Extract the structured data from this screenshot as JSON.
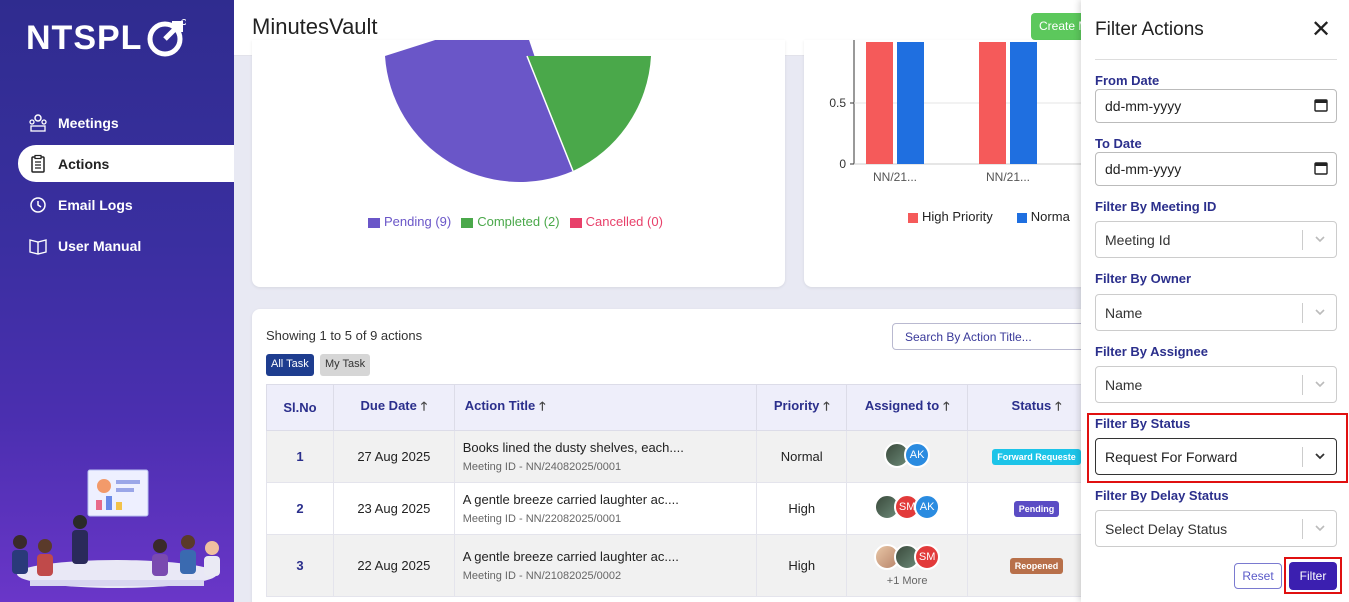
{
  "brand": {
    "logo_text": "NTSPL"
  },
  "sidebar": {
    "items": [
      {
        "label": "Meetings",
        "icon": "meetings-icon",
        "active": false
      },
      {
        "label": "Actions",
        "icon": "clipboard-icon",
        "active": true
      },
      {
        "label": "Email Logs",
        "icon": "history-icon",
        "active": false
      },
      {
        "label": "User Manual",
        "icon": "book-icon",
        "active": false
      }
    ]
  },
  "header": {
    "title": "MinutesVault",
    "create_label": "Create M"
  },
  "pie": {
    "legend": [
      {
        "label": "Pending (9)",
        "color": "#6a56c8"
      },
      {
        "label": "Completed (2)",
        "color": "#4aa84a"
      },
      {
        "label": "Cancelled (0)",
        "color": "#e8406a"
      }
    ]
  },
  "chart_data": {
    "type": "bar",
    "categories": [
      "NN/21...",
      "NN/21..."
    ],
    "series": [
      {
        "name": "High Priority",
        "color": "#f55a5a",
        "values": [
          1,
          1
        ]
      },
      {
        "name": "Normal",
        "color": "#1f6fe0",
        "values": [
          1,
          1
        ]
      }
    ],
    "y_ticks": [
      "0.5",
      "0"
    ],
    "ylim": [
      0,
      1
    ],
    "legend_labels": [
      "High Priority",
      "Norma"
    ]
  },
  "table": {
    "showing": "Showing 1 to 5 of 9 actions",
    "search_placeholder": "Search By Action Title...",
    "tabs": [
      "All Task",
      "My Task"
    ],
    "headers": [
      "Sl.No",
      "Due Date",
      "Action Title",
      "Priority",
      "Assigned to",
      "Status"
    ],
    "rows": [
      {
        "sl": "1",
        "due": "27 Aug 2025",
        "title": "Books lined the dusty shelves, each....",
        "meeting": "Meeting ID - NN/24082025/0001",
        "priority": "Normal",
        "status": "Forward Requeste",
        "status_color": "#1cc4e8"
      },
      {
        "sl": "2",
        "due": "23 Aug 2025",
        "title": "A gentle breeze carried laughter ac....",
        "meeting": "Meeting ID - NN/22082025/0001",
        "priority": "High",
        "status": "Pending",
        "status_color": "#5b4cc4"
      },
      {
        "sl": "3",
        "due": "22 Aug 2025",
        "title": "A gentle breeze carried laughter ac....",
        "meeting": "Meeting ID - NN/21082025/0002",
        "priority": "High",
        "status": "Reopened",
        "status_color": "#b8704a",
        "more": "+1 More"
      }
    ],
    "avatars": {
      "ak": "AK",
      "sm": "SM"
    }
  },
  "filter": {
    "title": "Filter Actions",
    "from_date_label": "From Date",
    "from_date_value": "dd-mm-yyyy",
    "to_date_label": "To Date",
    "to_date_value": "dd-mm-yyyy",
    "meeting_label": "Filter By Meeting ID",
    "meeting_value": "Meeting Id",
    "owner_label": "Filter By Owner",
    "owner_value": "Name",
    "assignee_label": "Filter By Assignee",
    "assignee_value": "Name",
    "status_label": "Filter By Status",
    "status_value": "Request For Forward",
    "delay_label": "Filter By Delay Status",
    "delay_value": "Select Delay Status",
    "reset_label": "Reset",
    "filter_label": "Filter"
  }
}
